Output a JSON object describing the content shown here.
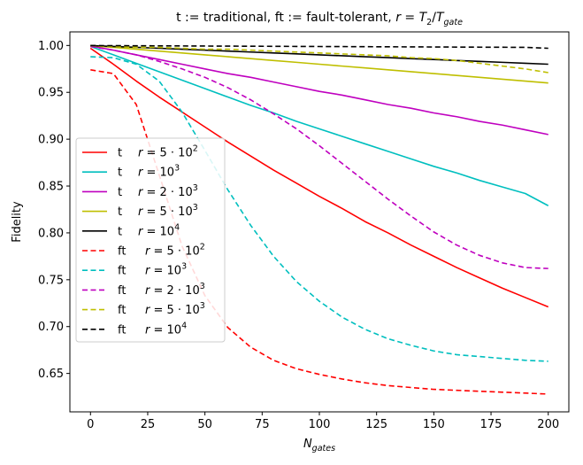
{
  "chart_data": {
    "type": "line",
    "title_parts": [
      "t := traditional, ft := fault-tolerant, ",
      "r",
      " = ",
      "T",
      "2",
      "/",
      "T",
      "gate"
    ],
    "xlabel_parts": [
      "N",
      "gates"
    ],
    "ylabel": "Fidelity",
    "xlim": [
      -9,
      209
    ],
    "ylim": [
      0.609,
      1.0145
    ],
    "xticks": [
      0,
      25,
      50,
      75,
      100,
      125,
      150,
      175,
      200
    ],
    "xtick_labels": [
      "0",
      "25",
      "50",
      "75",
      "100",
      "125",
      "150",
      "175",
      "200"
    ],
    "yticks": [
      0.65,
      0.7,
      0.75,
      0.8,
      0.85,
      0.9,
      0.95,
      1.0
    ],
    "ytick_labels": [
      "0.65",
      "0.70",
      "0.75",
      "0.80",
      "0.85",
      "0.90",
      "0.95",
      "1.00"
    ],
    "grid": false,
    "legend_position": "lower-left",
    "x": [
      0,
      10,
      20,
      30,
      40,
      50,
      60,
      70,
      80,
      90,
      100,
      110,
      120,
      130,
      140,
      150,
      160,
      170,
      180,
      190,
      200
    ],
    "series": [
      {
        "legend_label": [
          "t",
          "r",
          "= 5 · 10",
          "2"
        ],
        "color": "#ff0000",
        "dash": "solid",
        "values": [
          0.997,
          0.98,
          0.962,
          0.945,
          0.929,
          0.913,
          0.897,
          0.882,
          0.867,
          0.853,
          0.839,
          0.826,
          0.812,
          0.8,
          0.787,
          0.775,
          0.763,
          0.752,
          0.741,
          0.731,
          0.721
        ]
      },
      {
        "legend_label": [
          "t",
          "r",
          "= 10",
          "3"
        ],
        "color": "#00bfbf",
        "dash": "solid",
        "values": [
          0.999,
          0.99,
          0.981,
          0.972,
          0.963,
          0.954,
          0.945,
          0.936,
          0.928,
          0.919,
          0.911,
          0.903,
          0.895,
          0.887,
          0.879,
          0.871,
          0.864,
          0.856,
          0.849,
          0.842,
          0.829
        ]
      },
      {
        "legend_label": [
          "t",
          "r",
          "= 2 · 10",
          "3"
        ],
        "color": "#bf00bf",
        "dash": "solid",
        "values": [
          0.9995,
          0.995,
          0.99,
          0.985,
          0.98,
          0.975,
          0.97,
          0.966,
          0.961,
          0.956,
          0.951,
          0.947,
          0.942,
          0.937,
          0.933,
          0.928,
          0.924,
          0.919,
          0.915,
          0.91,
          0.905
        ]
      },
      {
        "legend_label": [
          "t",
          "r",
          "= 5 · 10",
          "3"
        ],
        "color": "#bfbf00",
        "dash": "solid",
        "values": [
          0.9998,
          0.998,
          0.996,
          0.994,
          0.992,
          0.99,
          0.988,
          0.986,
          0.984,
          0.982,
          0.98,
          0.978,
          0.976,
          0.974,
          0.972,
          0.97,
          0.968,
          0.966,
          0.964,
          0.962,
          0.96
        ]
      },
      {
        "legend_label": [
          "t",
          "r",
          "= 10",
          "4"
        ],
        "color": "#000000",
        "dash": "solid",
        "values": [
          0.9999,
          0.999,
          0.998,
          0.997,
          0.996,
          0.995,
          0.994,
          0.993,
          0.992,
          0.991,
          0.99,
          0.989,
          0.988,
          0.987,
          0.986,
          0.985,
          0.984,
          0.983,
          0.982,
          0.981,
          0.98
        ]
      },
      {
        "legend_label": [
          "ft",
          "r",
          "= 5 · 10",
          "2"
        ],
        "color": "#ff0000",
        "dash": "dashed",
        "values": [
          0.974,
          0.97,
          0.937,
          0.862,
          0.786,
          0.733,
          0.699,
          0.678,
          0.664,
          0.655,
          0.649,
          0.644,
          0.64,
          0.637,
          0.635,
          0.633,
          0.632,
          0.631,
          0.63,
          0.629,
          0.628
        ]
      },
      {
        "legend_label": [
          "ft",
          "r",
          "= 10",
          "3"
        ],
        "color": "#00bfbf",
        "dash": "dashed",
        "values": [
          0.988,
          0.987,
          0.98,
          0.962,
          0.929,
          0.888,
          0.846,
          0.808,
          0.775,
          0.748,
          0.727,
          0.71,
          0.697,
          0.687,
          0.68,
          0.674,
          0.67,
          0.668,
          0.666,
          0.664,
          0.663
        ]
      },
      {
        "legend_label": [
          "ft",
          "r",
          "= 2 · 10",
          "3"
        ],
        "color": "#bf00bf",
        "dash": "dashed",
        "values": [
          0.999,
          0.995,
          0.99,
          0.983,
          0.975,
          0.966,
          0.955,
          0.942,
          0.927,
          0.911,
          0.893,
          0.874,
          0.855,
          0.836,
          0.818,
          0.801,
          0.787,
          0.776,
          0.768,
          0.763,
          0.762
        ]
      },
      {
        "legend_label": [
          "ft",
          "r",
          "= 5 · 10",
          "3"
        ],
        "color": "#bfbf00",
        "dash": "dashed",
        "values": [
          0.9998,
          0.999,
          0.998,
          0.998,
          0.997,
          0.996,
          0.996,
          0.995,
          0.994,
          0.993,
          0.992,
          0.991,
          0.99,
          0.989,
          0.987,
          0.986,
          0.984,
          0.981,
          0.978,
          0.975,
          0.971
        ]
      },
      {
        "legend_label": [
          "ft",
          "r",
          "= 10",
          "4"
        ],
        "color": "#000000",
        "dash": "dashed",
        "values": [
          0.9999,
          0.9998,
          0.9997,
          0.9996,
          0.9995,
          0.9994,
          0.9993,
          0.9992,
          0.9991,
          0.999,
          0.9989,
          0.9988,
          0.9987,
          0.9986,
          0.9985,
          0.9984,
          0.9983,
          0.9982,
          0.9981,
          0.998,
          0.997
        ]
      }
    ]
  }
}
